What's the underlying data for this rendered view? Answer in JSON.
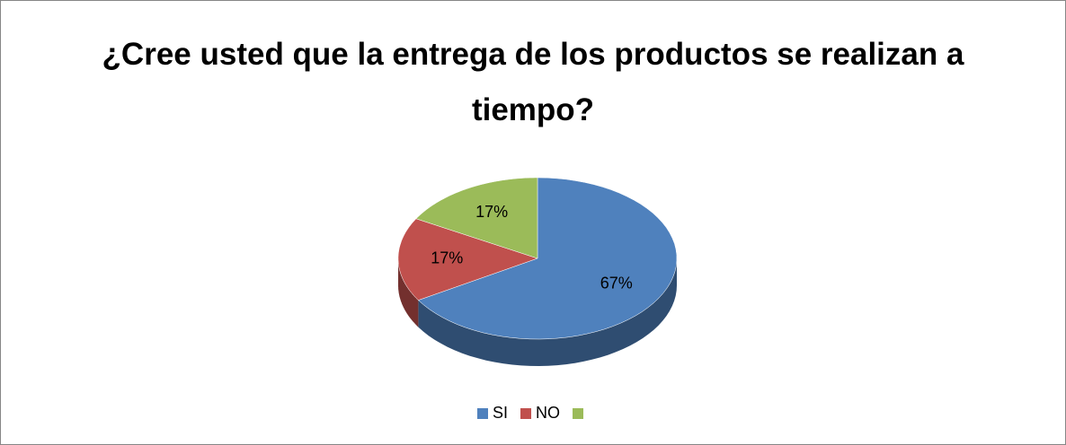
{
  "chart_data": {
    "type": "pie",
    "title": "¿Cree usted que la entrega de los productos se realizan a tiempo?",
    "categories": [
      "SI",
      "NO",
      null
    ],
    "values": [
      67,
      17,
      17
    ],
    "value_labels": [
      "67%",
      "17%",
      "17%"
    ],
    "colors": [
      "#4f81bd",
      "#c0504d",
      "#9bbb59"
    ],
    "legend": "bottom"
  }
}
